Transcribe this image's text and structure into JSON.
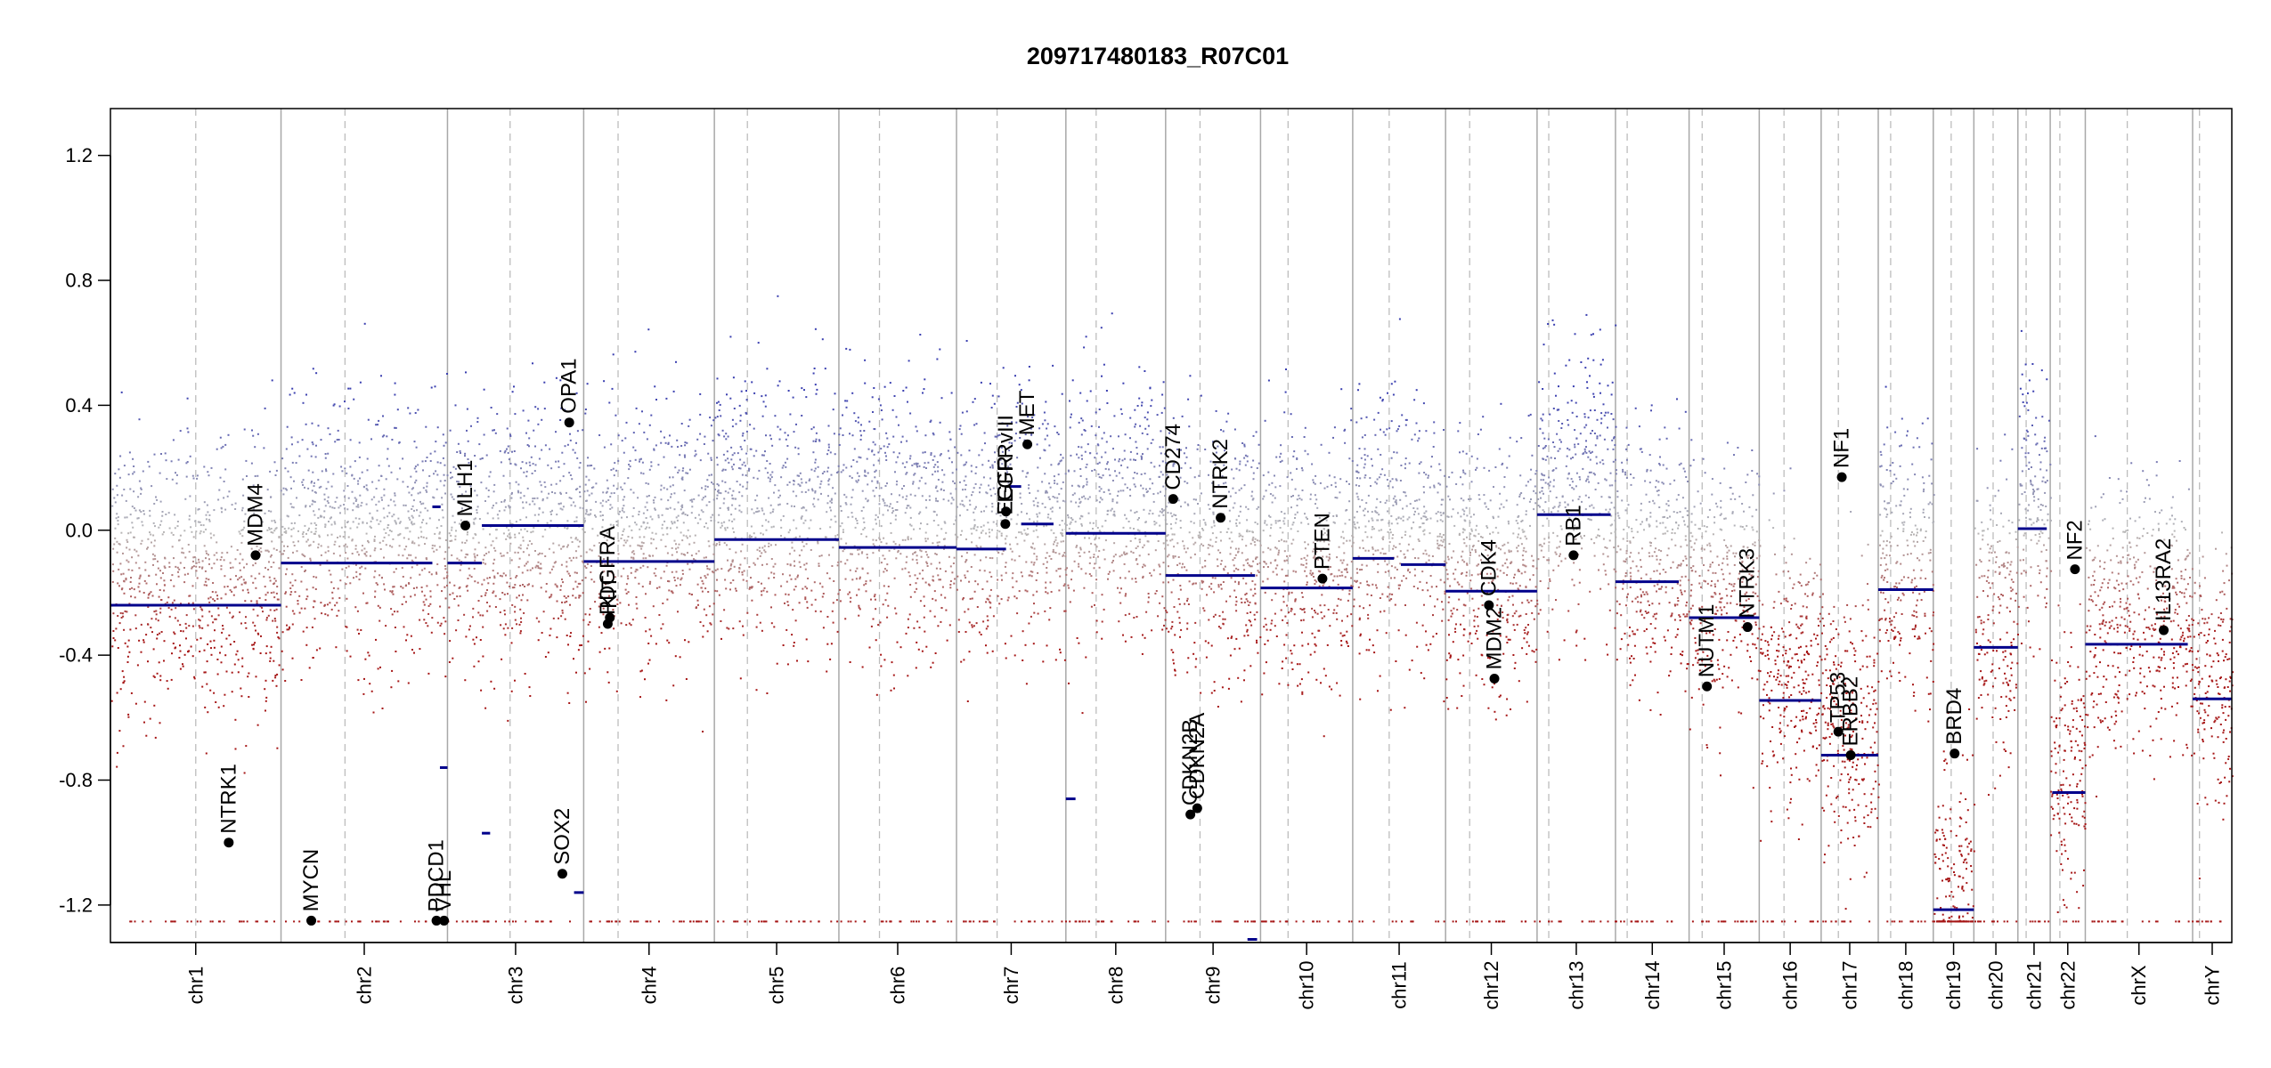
{
  "chart_data": {
    "type": "scatter",
    "title": "209717480183_R07C01",
    "xlabel": "",
    "ylabel": "",
    "ylim": [
      -1.32,
      1.35
    ],
    "yticks": [
      -1.2,
      -0.8,
      -0.4,
      0.0,
      0.4,
      0.8,
      1.2
    ],
    "ytick_labels": [
      "-1.2",
      "-0.8",
      "-0.4",
      "0.0",
      "0.4",
      "0.8",
      "1.2"
    ],
    "grid": false,
    "chromosomes": [
      {
        "name": "chr1",
        "start": 0,
        "end": 248,
        "centromere": 124
      },
      {
        "name": "chr2",
        "start": 248,
        "end": 490,
        "centromere": 341
      },
      {
        "name": "chr3",
        "start": 490,
        "end": 688,
        "centromere": 581
      },
      {
        "name": "chr4",
        "start": 688,
        "end": 878,
        "centromere": 738
      },
      {
        "name": "chr5",
        "start": 878,
        "end": 1059,
        "centromere": 926
      },
      {
        "name": "chr6",
        "start": 1059,
        "end": 1230,
        "centromere": 1118
      },
      {
        "name": "chr7",
        "start": 1230,
        "end": 1389,
        "centromere": 1289
      },
      {
        "name": "chr8",
        "start": 1389,
        "end": 1534,
        "centromere": 1433
      },
      {
        "name": "chr9",
        "start": 1534,
        "end": 1672,
        "centromere": 1584
      },
      {
        "name": "chr10",
        "start": 1672,
        "end": 1806,
        "centromere": 1712
      },
      {
        "name": "chr11",
        "start": 1806,
        "end": 1941,
        "centromere": 1859
      },
      {
        "name": "chr12",
        "start": 1941,
        "end": 2074,
        "centromere": 1976
      },
      {
        "name": "chr13",
        "start": 2074,
        "end": 2188,
        "centromere": 2091
      },
      {
        "name": "chr14",
        "start": 2188,
        "end": 2295,
        "centromere": 2205
      },
      {
        "name": "chr15",
        "start": 2295,
        "end": 2397,
        "centromere": 2314
      },
      {
        "name": "chr16",
        "start": 2397,
        "end": 2487,
        "centromere": 2433
      },
      {
        "name": "chr17",
        "start": 2487,
        "end": 2570,
        "centromere": 2512
      },
      {
        "name": "chr18",
        "start": 2570,
        "end": 2650,
        "centromere": 2588
      },
      {
        "name": "chr19",
        "start": 2650,
        "end": 2709,
        "centromere": 2676
      },
      {
        "name": "chr20",
        "start": 2709,
        "end": 2773,
        "centromere": 2737
      },
      {
        "name": "chr21",
        "start": 2773,
        "end": 2820,
        "centromere": 2785
      },
      {
        "name": "chr22",
        "start": 2820,
        "end": 2871,
        "centromere": 2834
      },
      {
        "name": "chrX",
        "start": 2871,
        "end": 3027,
        "centromere": 2932
      },
      {
        "name": "chrY",
        "start": 3027,
        "end": 3084,
        "centromere": 3037
      }
    ],
    "segments": [
      {
        "chr": "chr1",
        "x0": 0,
        "x1": 248,
        "y": -0.24
      },
      {
        "chr": "chr2",
        "x0": 248,
        "x1": 468,
        "y": -0.105
      },
      {
        "chr": "chr2",
        "x0": 468,
        "x1": 480,
        "y": 0.075
      },
      {
        "chr": "chr2",
        "x0": 479,
        "x1": 490,
        "y": -0.76
      },
      {
        "chr": "chr3",
        "x0": 490,
        "x1": 540,
        "y": -0.105
      },
      {
        "chr": "chr3",
        "x0": 540,
        "x1": 688,
        "y": 0.015
      },
      {
        "chr": "chr3",
        "x0": 540,
        "x1": 552,
        "y": -0.97
      },
      {
        "chr": "chr3",
        "x0": 674,
        "x1": 688,
        "y": -1.16
      },
      {
        "chr": "chr4",
        "x0": 688,
        "x1": 878,
        "y": -0.1
      },
      {
        "chr": "chr5",
        "x0": 878,
        "x1": 1059,
        "y": -0.03
      },
      {
        "chr": "chr6",
        "x0": 1059,
        "x1": 1230,
        "y": -0.055
      },
      {
        "chr": "chr7",
        "x0": 1230,
        "x1": 1302,
        "y": -0.06
      },
      {
        "chr": "chr7",
        "x0": 1302,
        "x1": 1324,
        "y": 0.14
      },
      {
        "chr": "chr7",
        "x0": 1324,
        "x1": 1371,
        "y": 0.02
      },
      {
        "chr": "chr8",
        "x0": 1389,
        "x1": 1534,
        "y": -0.01
      },
      {
        "chr": "chr8",
        "x0": 1389,
        "x1": 1403,
        "y": -0.86
      },
      {
        "chr": "chr9",
        "x0": 1534,
        "x1": 1664,
        "y": -0.145
      },
      {
        "chr": "chr9",
        "x0": 1653,
        "x1": 1667,
        "y": -1.31
      },
      {
        "chr": "chr10",
        "x0": 1672,
        "x1": 1806,
        "y": -0.185
      },
      {
        "chr": "chr11",
        "x0": 1806,
        "x1": 1866,
        "y": -0.09
      },
      {
        "chr": "chr11",
        "x0": 1876,
        "x1": 1941,
        "y": -0.11
      },
      {
        "chr": "chr12",
        "x0": 1941,
        "x1": 2074,
        "y": -0.195
      },
      {
        "chr": "chr13",
        "x0": 2074,
        "x1": 2181,
        "y": 0.05
      },
      {
        "chr": "chr14",
        "x0": 2188,
        "x1": 2280,
        "y": -0.165
      },
      {
        "chr": "chr15",
        "x0": 2295,
        "x1": 2397,
        "y": -0.28
      },
      {
        "chr": "chr16",
        "x0": 2397,
        "x1": 2487,
        "y": -0.545
      },
      {
        "chr": "chr17",
        "x0": 2487,
        "x1": 2570,
        "y": -0.72
      },
      {
        "chr": "chr18",
        "x0": 2570,
        "x1": 2650,
        "y": -0.19
      },
      {
        "chr": "chr19",
        "x0": 2650,
        "x1": 2709,
        "y": -1.215
      },
      {
        "chr": "chr20",
        "x0": 2709,
        "x1": 2773,
        "y": -0.375
      },
      {
        "chr": "chr21",
        "x0": 2773,
        "x1": 2815,
        "y": 0.005
      },
      {
        "chr": "chr22",
        "x0": 2823,
        "x1": 2871,
        "y": -0.84
      },
      {
        "chr": "chrX",
        "x0": 2871,
        "x1": 3020,
        "y": -0.365
      },
      {
        "chr": "chrY",
        "x0": 3027,
        "x1": 3084,
        "y": -0.54
      }
    ],
    "genes": [
      {
        "name": "NTRK1",
        "x": 172,
        "y": -1.0
      },
      {
        "name": "MDM4",
        "x": 211,
        "y": -0.08
      },
      {
        "name": "MYCN",
        "x": 292,
        "y": -1.25
      },
      {
        "name": "PDCD1",
        "x": 474,
        "y": -1.25
      },
      {
        "name": "VHL",
        "x": 485,
        "y": -1.25
      },
      {
        "name": "MLH1",
        "x": 516,
        "y": 0.015
      },
      {
        "name": "SOX2",
        "x": 657,
        "y": -1.1
      },
      {
        "name": "OPA1",
        "x": 667,
        "y": 0.345
      },
      {
        "name": "PDGFRA",
        "x": 723,
        "y": -0.3
      },
      {
        "name": "KIT",
        "x": 726,
        "y": -0.28
      },
      {
        "name": "EGFR",
        "x": 1301,
        "y": 0.02
      },
      {
        "name": "EGFRvIII",
        "x": 1302,
        "y": 0.06
      },
      {
        "name": "MET",
        "x": 1333,
        "y": 0.275
      },
      {
        "name": "CD274",
        "x": 1545,
        "y": 0.1
      },
      {
        "name": "CDKN2B",
        "x": 1570,
        "y": -0.91
      },
      {
        "name": "CDKN2A",
        "x": 1580,
        "y": -0.89
      },
      {
        "name": "NTRK2",
        "x": 1614,
        "y": 0.04
      },
      {
        "name": "PTEN",
        "x": 1762,
        "y": -0.155
      },
      {
        "name": "MDM2",
        "x": 2012,
        "y": -0.475
      },
      {
        "name": "CDK4",
        "x": 2004,
        "y": -0.24
      },
      {
        "name": "RB1",
        "x": 2127,
        "y": -0.08
      },
      {
        "name": "NUTM1",
        "x": 2321,
        "y": -0.5
      },
      {
        "name": "NTRK3",
        "x": 2380,
        "y": -0.31
      },
      {
        "name": "TP53",
        "x": 2512,
        "y": -0.645
      },
      {
        "name": "ERBB2",
        "x": 2530,
        "y": -0.72
      },
      {
        "name": "NF1",
        "x": 2517,
        "y": 0.17
      },
      {
        "name": "BRD4",
        "x": 2681,
        "y": -0.715
      },
      {
        "name": "NF2",
        "x": 2856,
        "y": -0.125
      },
      {
        "name": "IL13RA2",
        "x": 2985,
        "y": -0.32
      }
    ],
    "point_colors": {
      "gain": "#3a3fb0",
      "neutral": "#b7b7b7",
      "loss": "#a61616",
      "segment": "#00008b",
      "gene": "#000000"
    }
  }
}
